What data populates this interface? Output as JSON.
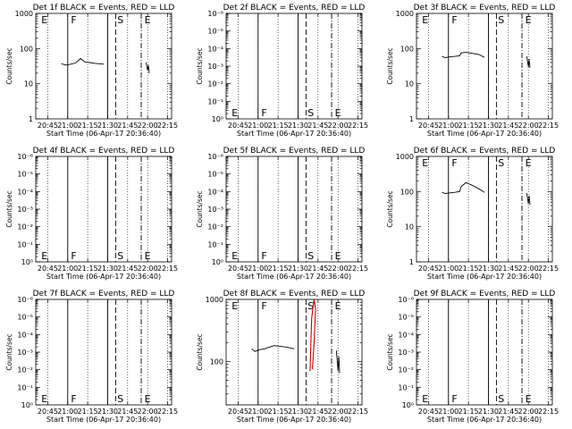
{
  "figure": {
    "x_tick_labels": [
      "20:45",
      "21:00",
      "21:15",
      "21:30",
      "21:45",
      "22:00",
      "22:15"
    ],
    "x_label": "Start Time (06-Apr-17 20:36:40)",
    "y_label": "Counts/sec",
    "colors": {
      "events": "#000000",
      "lld": "#cc0000"
    }
  },
  "chart_data": [
    {
      "type": "line",
      "title": "Det 1f BLACK = Events, RED = LLD",
      "y_tick_labels": [
        "1",
        "10",
        "100",
        "1000"
      ],
      "ylim": [
        1,
        1000
      ],
      "xlim": [
        20.6,
        22.3
      ],
      "markers": {
        "E_left": 20.65,
        "F": 21.0,
        "S": 21.6,
        "E": 21.92
      },
      "annotation_position": "top",
      "series": [
        {
          "points": [
            [
              20.92,
              37
            ],
            [
              20.98,
              34
            ],
            [
              21.04,
              36
            ],
            [
              21.1,
              39
            ],
            [
              21.16,
              52
            ],
            [
              21.22,
              41
            ],
            [
              21.28,
              40
            ],
            [
              21.34,
              38
            ],
            [
              21.4,
              37
            ],
            [
              21.45,
              36
            ]
          ]
        },
        {
          "points": [
            [
              21.98,
              40
            ],
            [
              22.0,
              24
            ],
            [
              22.01,
              34
            ],
            [
              22.02,
              20
            ]
          ]
        }
      ]
    },
    {
      "type": "line",
      "title": "Det 2f BLACK = Events, RED = LLD",
      "y_tick_labels": [
        "10⁰",
        "10⁻¹",
        "10⁻²",
        "10⁻³",
        "10⁻⁴",
        "10⁻⁵",
        "10⁻⁶"
      ],
      "ylim": [
        1,
        1000000
      ],
      "xlim": [
        20.6,
        22.3
      ],
      "markers": {
        "E_left": 20.65,
        "F": 21.0,
        "S": 21.6,
        "E": 21.92
      },
      "annotation_position": "bottom",
      "series": []
    },
    {
      "type": "line",
      "title": "Det 3f BLACK = Events, RED = LLD",
      "y_tick_labels": [
        "1",
        "10",
        "100",
        "1000"
      ],
      "ylim": [
        1,
        1000
      ],
      "xlim": [
        20.6,
        22.3
      ],
      "markers": {
        "E_left": 20.65,
        "F": 21.0,
        "S": 21.6,
        "E": 21.92
      },
      "annotation_position": "top",
      "series": [
        {
          "points": [
            [
              20.92,
              60
            ],
            [
              20.96,
              55
            ],
            [
              21.02,
              58
            ],
            [
              21.08,
              60
            ],
            [
              21.14,
              62
            ],
            [
              21.16,
              75
            ],
            [
              21.22,
              78
            ],
            [
              21.3,
              73
            ],
            [
              21.38,
              68
            ],
            [
              21.45,
              56
            ]
          ]
        },
        {
          "points": [
            [
              21.98,
              60
            ],
            [
              22.0,
              30
            ],
            [
              22.01,
              50
            ],
            [
              22.02,
              28
            ]
          ]
        }
      ]
    },
    {
      "type": "line",
      "title": "Det 4f BLACK = Events, RED = LLD",
      "y_tick_labels": [
        "10⁰",
        "10⁻¹",
        "10⁻²",
        "10⁻³",
        "10⁻⁴",
        "10⁻⁵",
        "10⁻⁶"
      ],
      "ylim": [
        1,
        1000000
      ],
      "xlim": [
        20.6,
        22.3
      ],
      "markers": {
        "E_left": 20.65,
        "F": 21.0,
        "S": 21.6,
        "E": 21.92
      },
      "annotation_position": "bottom",
      "series": []
    },
    {
      "type": "line",
      "title": "Det 5f BLACK = Events, RED = LLD",
      "y_tick_labels": [
        "10⁰",
        "10⁻¹",
        "10⁻²",
        "10⁻³",
        "10⁻⁴",
        "10⁻⁵",
        "10⁻⁶"
      ],
      "ylim": [
        1,
        1000000
      ],
      "xlim": [
        20.6,
        22.3
      ],
      "markers": {
        "E_left": 20.65,
        "F": 21.0,
        "S": 21.6,
        "E": 21.92
      },
      "annotation_position": "bottom",
      "series": []
    },
    {
      "type": "line",
      "title": "Det 6f BLACK = Events, RED = LLD",
      "y_tick_labels": [
        "1",
        "10",
        "100",
        "1000"
      ],
      "ylim": [
        1,
        1000
      ],
      "xlim": [
        20.6,
        22.3
      ],
      "markers": {
        "E_left": 20.65,
        "F": 21.0,
        "S": 21.6,
        "E": 21.92
      },
      "annotation_position": "top",
      "series": [
        {
          "points": [
            [
              20.92,
              95
            ],
            [
              20.96,
              88
            ],
            [
              21.02,
              92
            ],
            [
              21.08,
              95
            ],
            [
              21.14,
              100
            ],
            [
              21.16,
              140
            ],
            [
              21.22,
              180
            ],
            [
              21.3,
              150
            ],
            [
              21.38,
              120
            ],
            [
              21.45,
              95
            ]
          ]
        },
        {
          "points": [
            [
              21.98,
              90
            ],
            [
              22.0,
              45
            ],
            [
              22.01,
              75
            ],
            [
              22.02,
              42
            ]
          ]
        }
      ]
    },
    {
      "type": "line",
      "title": "Det 7f BLACK = Events, RED = LLD",
      "y_tick_labels": [
        "10⁰",
        "10⁻¹",
        "10⁻²",
        "10⁻³",
        "10⁻⁴",
        "10⁻⁵",
        "10⁻⁶"
      ],
      "ylim": [
        1,
        1000000
      ],
      "xlim": [
        20.6,
        22.3
      ],
      "markers": {
        "E_left": 20.65,
        "F": 21.0,
        "S": 21.6,
        "E": 21.92
      },
      "annotation_position": "bottom",
      "series": []
    },
    {
      "type": "line",
      "title": "Det 8f BLACK = Events, RED = LLD",
      "y_tick_labels": [
        "100",
        "1000"
      ],
      "ylim": [
        20,
        1000
      ],
      "xlim": [
        20.6,
        22.3
      ],
      "markers": {
        "E_left": 20.65,
        "F": 21.0,
        "S": 21.6,
        "E": 21.92
      },
      "annotation_position": "top",
      "series": [
        {
          "points": [
            [
              20.92,
              160
            ],
            [
              20.96,
              145
            ],
            [
              21.02,
              155
            ],
            [
              21.08,
              160
            ],
            [
              21.14,
              170
            ],
            [
              21.2,
              180
            ],
            [
              21.28,
              175
            ],
            [
              21.36,
              170
            ],
            [
              21.45,
              160
            ]
          ]
        },
        {
          "points": [
            [
              21.98,
              150
            ],
            [
              22.0,
              70
            ],
            [
              22.01,
              120
            ],
            [
              22.02,
              65
            ]
          ]
        },
        {
          "lld": true,
          "points": [
            [
              21.65,
              70
            ],
            [
              21.67,
              500
            ],
            [
              21.7,
              1000
            ],
            [
              21.72,
              700
            ],
            [
              21.7,
              200
            ],
            [
              21.68,
              75
            ]
          ]
        }
      ]
    },
    {
      "type": "line",
      "title": "Det 9f BLACK = Events, RED = LLD",
      "y_tick_labels": [
        "10⁰",
        "10⁻¹",
        "10⁻²",
        "10⁻³",
        "10⁻⁴",
        "10⁻⁵",
        "10⁻⁶"
      ],
      "ylim": [
        1,
        1000000
      ],
      "xlim": [
        20.6,
        22.3
      ],
      "markers": {
        "E_left": 20.65,
        "F": 21.0,
        "S": 21.6,
        "E": 21.92
      },
      "annotation_position": "bottom",
      "series": []
    }
  ]
}
